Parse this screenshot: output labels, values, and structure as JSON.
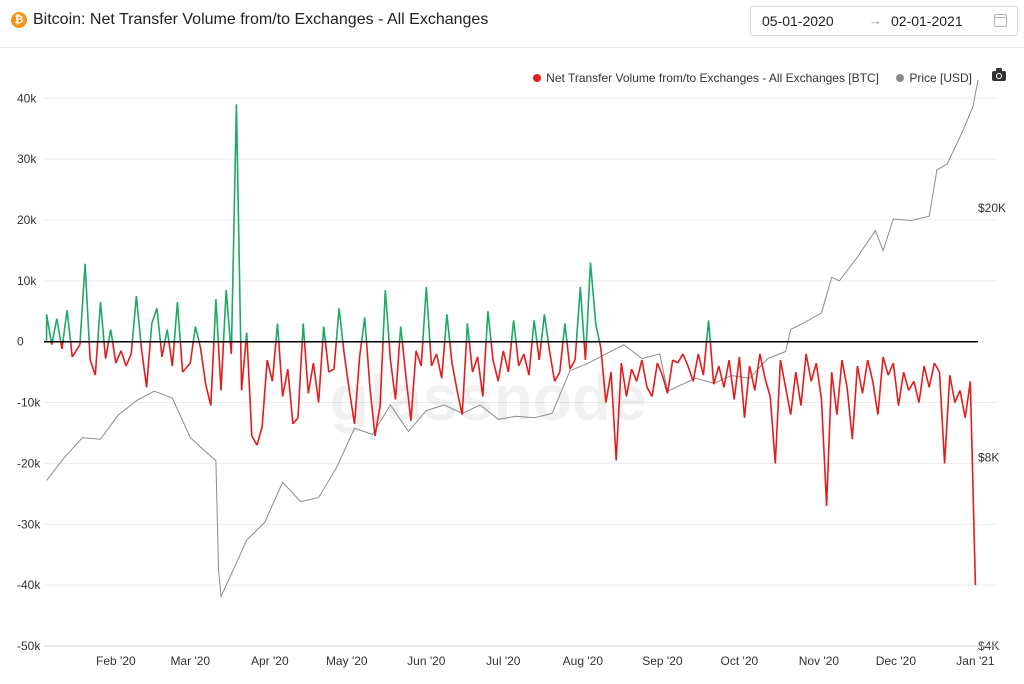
{
  "header": {
    "coin_icon": "bitcoin-icon",
    "coin_symbol": "₿",
    "title": "Bitcoin: Net Transfer Volume from/to Exchanges - All Exchanges"
  },
  "date_range": {
    "start": "05-01-2020",
    "arrow": "→",
    "end": "02-01-2021",
    "icon": "calendar-icon"
  },
  "toolbar": {
    "camera_icon": "camera-icon"
  },
  "watermark": "glassnode",
  "colors": {
    "inflow": "#e01e1e",
    "outflow": "#1fa866",
    "price": "#8c8c8c"
  },
  "chart_data": {
    "type": "line",
    "title": "Bitcoin: Net Transfer Volume from/to Exchanges - All Exchanges",
    "legend": {
      "placement": "top-right",
      "entries": [
        "Net Transfer Volume from/to Exchanges - All Exchanges [BTC]",
        "Price [USD]"
      ]
    },
    "grid": true,
    "x_ticks": [
      "Feb '20",
      "Mar '20",
      "Apr '20",
      "May '20",
      "Jun '20",
      "Jul '20",
      "Aug '20",
      "Sep '20",
      "Oct '20",
      "Nov '20",
      "Dec '20",
      "Jan '21"
    ],
    "y_left": {
      "ticks": [
        "40k",
        "30k",
        "20k",
        "10k",
        "0",
        "-10k",
        "-20k",
        "-30k",
        "-40k",
        "-50k"
      ],
      "range": [
        -50000,
        43000
      ]
    },
    "y_right": {
      "ticks": [
        "$20K",
        "$8K",
        "$4K"
      ],
      "scale": "log",
      "range": [
        4000,
        32000
      ]
    },
    "series": [
      {
        "name": "Net Transfer Volume from/to Exchanges - All Exchanges [BTC]",
        "axis": "left",
        "points": [
          [
            "2020-01-05",
            4500
          ],
          [
            "2020-01-07",
            -500
          ],
          [
            "2020-01-09",
            3800
          ],
          [
            "2020-01-11",
            -1200
          ],
          [
            "2020-01-13",
            5200
          ],
          [
            "2020-01-15",
            -2500
          ],
          [
            "2020-01-18",
            -500
          ],
          [
            "2020-01-20",
            12800
          ],
          [
            "2020-01-22",
            -3000
          ],
          [
            "2020-01-24",
            -5500
          ],
          [
            "2020-01-26",
            6500
          ],
          [
            "2020-01-28",
            -2800
          ],
          [
            "2020-01-30",
            2000
          ],
          [
            "2020-02-01",
            -3500
          ],
          [
            "2020-02-03",
            -1500
          ],
          [
            "2020-02-05",
            -4000
          ],
          [
            "2020-02-07",
            -2000
          ],
          [
            "2020-02-09",
            7500
          ],
          [
            "2020-02-11",
            -1200
          ],
          [
            "2020-02-13",
            -7500
          ],
          [
            "2020-02-15",
            3000
          ],
          [
            "2020-02-17",
            5500
          ],
          [
            "2020-02-19",
            -2500
          ],
          [
            "2020-02-21",
            2000
          ],
          [
            "2020-02-23",
            -4000
          ],
          [
            "2020-02-25",
            6500
          ],
          [
            "2020-02-27",
            -5000
          ],
          [
            "2020-03-01",
            -3500
          ],
          [
            "2020-03-03",
            2500
          ],
          [
            "2020-03-05",
            -1000
          ],
          [
            "2020-03-07",
            -7000
          ],
          [
            "2020-03-09",
            -10500
          ],
          [
            "2020-03-11",
            7000
          ],
          [
            "2020-03-13",
            -8000
          ],
          [
            "2020-03-15",
            8500
          ],
          [
            "2020-03-17",
            -2000
          ],
          [
            "2020-03-19",
            39000
          ],
          [
            "2020-03-21",
            -8000
          ],
          [
            "2020-03-23",
            1500
          ],
          [
            "2020-03-25",
            -15500
          ],
          [
            "2020-03-27",
            -17000
          ],
          [
            "2020-03-29",
            -14000
          ],
          [
            "2020-03-31",
            -3000
          ],
          [
            "2020-04-02",
            -6500
          ],
          [
            "2020-04-04",
            3000
          ],
          [
            "2020-04-06",
            -9000
          ],
          [
            "2020-04-08",
            -4500
          ],
          [
            "2020-04-10",
            -13500
          ],
          [
            "2020-04-12",
            -12500
          ],
          [
            "2020-04-14",
            3000
          ],
          [
            "2020-04-16",
            -8500
          ],
          [
            "2020-04-18",
            -3500
          ],
          [
            "2020-04-20",
            -10000
          ],
          [
            "2020-04-22",
            2500
          ],
          [
            "2020-04-24",
            -5000
          ],
          [
            "2020-04-26",
            -4500
          ],
          [
            "2020-04-28",
            5500
          ],
          [
            "2020-04-30",
            -2000
          ],
          [
            "2020-05-02",
            -8000
          ],
          [
            "2020-05-04",
            -13500
          ],
          [
            "2020-05-06",
            -2500
          ],
          [
            "2020-05-08",
            4000
          ],
          [
            "2020-05-10",
            -7500
          ],
          [
            "2020-05-12",
            -15500
          ],
          [
            "2020-05-14",
            -10500
          ],
          [
            "2020-05-16",
            8500
          ],
          [
            "2020-05-18",
            -3000
          ],
          [
            "2020-05-20",
            -9500
          ],
          [
            "2020-05-22",
            2500
          ],
          [
            "2020-05-24",
            -5500
          ],
          [
            "2020-05-26",
            -13000
          ],
          [
            "2020-05-28",
            -1500
          ],
          [
            "2020-05-30",
            -4000
          ],
          [
            "2020-06-01",
            9000
          ],
          [
            "2020-06-03",
            -4000
          ],
          [
            "2020-06-05",
            -2000
          ],
          [
            "2020-06-07",
            -6000
          ],
          [
            "2020-06-09",
            4500
          ],
          [
            "2020-06-11",
            -3500
          ],
          [
            "2020-06-13",
            -8000
          ],
          [
            "2020-06-15",
            -12000
          ],
          [
            "2020-06-17",
            3000
          ],
          [
            "2020-06-19",
            -5000
          ],
          [
            "2020-06-21",
            -2500
          ],
          [
            "2020-06-23",
            -9000
          ],
          [
            "2020-06-25",
            5000
          ],
          [
            "2020-06-27",
            -3000
          ],
          [
            "2020-06-29",
            -6500
          ],
          [
            "2020-07-01",
            -1500
          ],
          [
            "2020-07-03",
            -5000
          ],
          [
            "2020-07-05",
            3500
          ],
          [
            "2020-07-07",
            -4000
          ],
          [
            "2020-07-09",
            -2000
          ],
          [
            "2020-07-11",
            -5500
          ],
          [
            "2020-07-13",
            3500
          ],
          [
            "2020-07-15",
            -3000
          ],
          [
            "2020-07-17",
            4500
          ],
          [
            "2020-07-19",
            -1500
          ],
          [
            "2020-07-21",
            -6500
          ],
          [
            "2020-07-23",
            -5000
          ],
          [
            "2020-07-25",
            3000
          ],
          [
            "2020-07-27",
            -4500
          ],
          [
            "2020-07-29",
            -3000
          ],
          [
            "2020-07-31",
            9000
          ],
          [
            "2020-08-02",
            -3000
          ],
          [
            "2020-08-04",
            13000
          ],
          [
            "2020-08-06",
            3000
          ],
          [
            "2020-08-08",
            -1000
          ],
          [
            "2020-08-10",
            -10000
          ],
          [
            "2020-08-12",
            -5000
          ],
          [
            "2020-08-14",
            -19500
          ],
          [
            "2020-08-16",
            -3500
          ],
          [
            "2020-08-18",
            -9000
          ],
          [
            "2020-08-20",
            -4500
          ],
          [
            "2020-08-22",
            -6500
          ],
          [
            "2020-08-24",
            -3000
          ],
          [
            "2020-08-26",
            -7500
          ],
          [
            "2020-08-28",
            -9000
          ],
          [
            "2020-08-30",
            -3500
          ],
          [
            "2020-09-01",
            -5500
          ],
          [
            "2020-09-03",
            -8500
          ],
          [
            "2020-09-05",
            -3000
          ],
          [
            "2020-09-07",
            -3500
          ],
          [
            "2020-09-09",
            -2000
          ],
          [
            "2020-09-11",
            -4000
          ],
          [
            "2020-09-13",
            -6500
          ],
          [
            "2020-09-15",
            -2000
          ],
          [
            "2020-09-17",
            -5500
          ],
          [
            "2020-09-19",
            3500
          ],
          [
            "2020-09-21",
            -7000
          ],
          [
            "2020-09-23",
            -4000
          ],
          [
            "2020-09-25",
            -7500
          ],
          [
            "2020-09-27",
            -3000
          ],
          [
            "2020-09-29",
            -9500
          ],
          [
            "2020-10-01",
            -2500
          ],
          [
            "2020-10-03",
            -12500
          ],
          [
            "2020-10-05",
            -4000
          ],
          [
            "2020-10-07",
            -8000
          ],
          [
            "2020-10-09",
            -2000
          ],
          [
            "2020-10-11",
            -6000
          ],
          [
            "2020-10-13",
            -9000
          ],
          [
            "2020-10-15",
            -20000
          ],
          [
            "2020-10-17",
            -3000
          ],
          [
            "2020-10-19",
            -7500
          ],
          [
            "2020-10-21",
            -12000
          ],
          [
            "2020-10-23",
            -5000
          ],
          [
            "2020-10-25",
            -10500
          ],
          [
            "2020-10-27",
            -2000
          ],
          [
            "2020-10-29",
            -6500
          ],
          [
            "2020-10-31",
            -3500
          ],
          [
            "2020-11-02",
            -9500
          ],
          [
            "2020-11-04",
            -27000
          ],
          [
            "2020-11-06",
            -5000
          ],
          [
            "2020-11-08",
            -12000
          ],
          [
            "2020-11-10",
            -3000
          ],
          [
            "2020-11-12",
            -7500
          ],
          [
            "2020-11-14",
            -16000
          ],
          [
            "2020-11-16",
            -4000
          ],
          [
            "2020-11-18",
            -8500
          ],
          [
            "2020-11-20",
            -3000
          ],
          [
            "2020-11-22",
            -6500
          ],
          [
            "2020-11-24",
            -12000
          ],
          [
            "2020-11-26",
            -2500
          ],
          [
            "2020-11-28",
            -5500
          ],
          [
            "2020-11-30",
            -3500
          ],
          [
            "2020-12-02",
            -10500
          ],
          [
            "2020-12-04",
            -5000
          ],
          [
            "2020-12-06",
            -8000
          ],
          [
            "2020-12-08",
            -6500
          ],
          [
            "2020-12-10",
            -10000
          ],
          [
            "2020-12-12",
            -4000
          ],
          [
            "2020-12-14",
            -7500
          ],
          [
            "2020-12-16",
            -3500
          ],
          [
            "2020-12-18",
            -5000
          ],
          [
            "2020-12-20",
            -20000
          ],
          [
            "2020-12-22",
            -5500
          ],
          [
            "2020-12-24",
            -10000
          ],
          [
            "2020-12-26",
            -8000
          ],
          [
            "2020-12-28",
            -12500
          ],
          [
            "2020-12-30",
            -6500
          ],
          [
            "2021-01-01",
            -40000
          ]
        ]
      },
      {
        "name": "Price [USD]",
        "axis": "right",
        "points": [
          [
            "2020-01-05",
            7350
          ],
          [
            "2020-01-12",
            8000
          ],
          [
            "2020-01-19",
            8600
          ],
          [
            "2020-01-26",
            8550
          ],
          [
            "2020-02-02",
            9350
          ],
          [
            "2020-02-09",
            9850
          ],
          [
            "2020-02-16",
            10200
          ],
          [
            "2020-02-23",
            9950
          ],
          [
            "2020-03-01",
            8600
          ],
          [
            "2020-03-08",
            8100
          ],
          [
            "2020-03-11",
            7900
          ],
          [
            "2020-03-12",
            5300
          ],
          [
            "2020-03-13",
            4800
          ],
          [
            "2020-03-16",
            5100
          ],
          [
            "2020-03-23",
            5900
          ],
          [
            "2020-03-30",
            6300
          ],
          [
            "2020-04-06",
            7300
          ],
          [
            "2020-04-13",
            6800
          ],
          [
            "2020-04-20",
            6900
          ],
          [
            "2020-04-27",
            7700
          ],
          [
            "2020-05-04",
            8900
          ],
          [
            "2020-05-11",
            8700
          ],
          [
            "2020-05-18",
            9700
          ],
          [
            "2020-05-25",
            8800
          ],
          [
            "2020-06-01",
            9500
          ],
          [
            "2020-06-08",
            9700
          ],
          [
            "2020-06-15",
            9400
          ],
          [
            "2020-06-22",
            9700
          ],
          [
            "2020-06-29",
            9200
          ],
          [
            "2020-07-06",
            9300
          ],
          [
            "2020-07-13",
            9250
          ],
          [
            "2020-07-20",
            9400
          ],
          [
            "2020-07-27",
            11000
          ],
          [
            "2020-08-03",
            11300
          ],
          [
            "2020-08-10",
            11700
          ],
          [
            "2020-08-17",
            12100
          ],
          [
            "2020-08-24",
            11500
          ],
          [
            "2020-08-31",
            11700
          ],
          [
            "2020-09-03",
            10200
          ],
          [
            "2020-09-14",
            10700
          ],
          [
            "2020-09-21",
            10500
          ],
          [
            "2020-09-28",
            10800
          ],
          [
            "2020-10-05",
            10700
          ],
          [
            "2020-10-12",
            11500
          ],
          [
            "2020-10-19",
            11800
          ],
          [
            "2020-10-21",
            12800
          ],
          [
            "2020-10-26",
            13100
          ],
          [
            "2020-11-02",
            13600
          ],
          [
            "2020-11-06",
            15500
          ],
          [
            "2020-11-09",
            15300
          ],
          [
            "2020-11-16",
            16700
          ],
          [
            "2020-11-23",
            18400
          ],
          [
            "2020-11-26",
            17100
          ],
          [
            "2020-11-30",
            19200
          ],
          [
            "2020-12-07",
            19100
          ],
          [
            "2020-12-14",
            19400
          ],
          [
            "2020-12-17",
            23000
          ],
          [
            "2020-12-21",
            23500
          ],
          [
            "2020-12-27",
            26500
          ],
          [
            "2020-12-31",
            29000
          ],
          [
            "2021-01-02",
            32000
          ]
        ]
      }
    ]
  }
}
